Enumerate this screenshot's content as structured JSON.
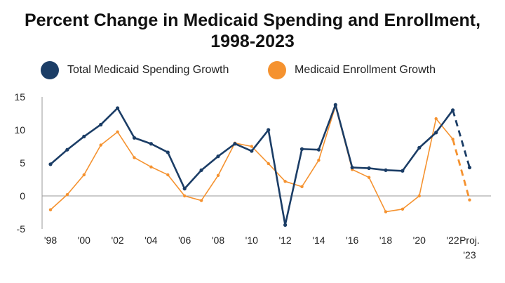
{
  "chart_data": {
    "type": "line",
    "title_line1": "Percent Change in Medicaid Spending and Enrollment,",
    "title_line2": "1998-2023",
    "xlabel": "",
    "ylabel": "",
    "ylim": [
      -5,
      15
    ],
    "y_ticks": [
      "15",
      "10",
      "5",
      "0",
      "-5"
    ],
    "x": [
      1998,
      1999,
      2000,
      2001,
      2002,
      2003,
      2004,
      2005,
      2006,
      2007,
      2008,
      2009,
      2010,
      2011,
      2012,
      2013,
      2014,
      2015,
      2016,
      2017,
      2018,
      2019,
      2020,
      2021,
      2022,
      2023
    ],
    "x_tick_labels": [
      {
        "x": 1998,
        "label": "'98"
      },
      {
        "x": 2000,
        "label": "'00"
      },
      {
        "x": 2002,
        "label": "'02"
      },
      {
        "x": 2004,
        "label": "'04"
      },
      {
        "x": 2006,
        "label": "'06"
      },
      {
        "x": 2008,
        "label": "'08"
      },
      {
        "x": 2010,
        "label": "'10"
      },
      {
        "x": 2012,
        "label": "'12"
      },
      {
        "x": 2014,
        "label": "'14"
      },
      {
        "x": 2016,
        "label": "'16"
      },
      {
        "x": 2018,
        "label": "'18"
      },
      {
        "x": 2020,
        "label": "'20"
      },
      {
        "x": 2022,
        "label": "'22"
      },
      {
        "x": 2023,
        "label": "Proj.",
        "label2": "'23"
      }
    ],
    "projected_from": 2022,
    "series": [
      {
        "name": "Total Medicaid Spending Growth",
        "color": "#1b3d66",
        "values": [
          4.8,
          7.0,
          9.0,
          10.8,
          13.3,
          8.8,
          7.9,
          6.6,
          1.1,
          3.9,
          6.0,
          7.9,
          6.8,
          10.0,
          -4.4,
          7.1,
          7.0,
          13.8,
          4.3,
          4.2,
          3.9,
          3.8,
          7.3,
          9.6,
          13.0,
          4.3
        ]
      },
      {
        "name": "Medicaid Enrollment Growth",
        "color": "#f5922f",
        "values": [
          -2.1,
          0.2,
          3.2,
          7.7,
          9.7,
          5.8,
          4.4,
          3.2,
          0.0,
          -0.7,
          3.1,
          8.0,
          7.5,
          4.9,
          2.2,
          1.4,
          5.4,
          13.6,
          4.0,
          2.8,
          -2.4,
          -2.0,
          0.0,
          11.7,
          8.6,
          -0.6
        ]
      }
    ]
  }
}
